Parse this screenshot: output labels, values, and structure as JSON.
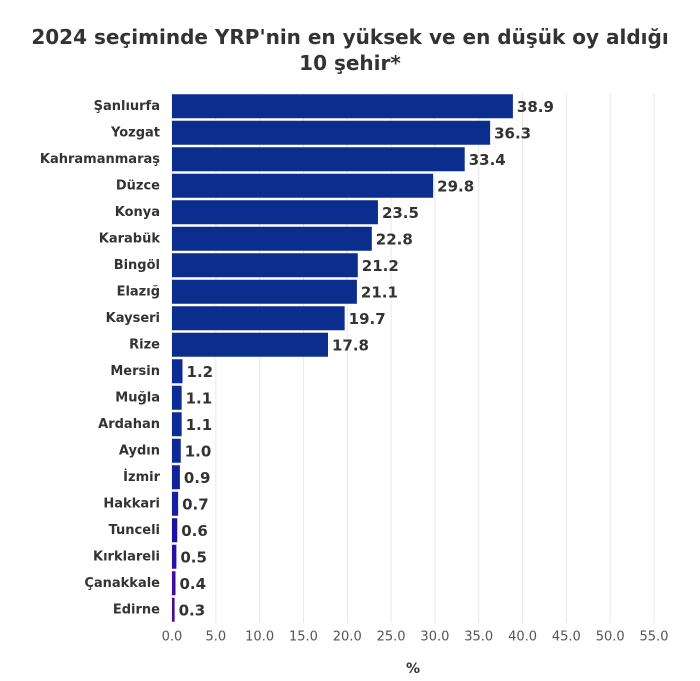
{
  "chart_data": {
    "type": "hbar",
    "title": "2024 seçiminde YRP'nin en yüksek ve en düşük oy aldığı 10 şehir*",
    "x_label": "%",
    "categories": [
      "Şanlıurfa",
      "Yozgat",
      "Kahramanmaraş",
      "Düzce",
      "Konya",
      "Karabük",
      "Bingöl",
      "Elazığ",
      "Kayseri",
      "Rize",
      "Mersin",
      "Muğla",
      "Ardahan",
      "Aydın",
      "İzmir",
      "Hakkari",
      "Tunceli",
      "Kırklareli",
      "Çanakkale",
      "Edirne"
    ],
    "values": [
      38.9,
      36.3,
      33.4,
      29.8,
      23.5,
      22.8,
      21.2,
      21.1,
      19.7,
      17.8,
      1.2,
      1.1,
      1.1,
      1.0,
      0.9,
      0.7,
      0.6,
      0.5,
      0.4,
      0.3
    ],
    "value_labels": [
      "38.9",
      "36.3",
      "33.4",
      "29.8",
      "23.5",
      "22.8",
      "21.2",
      "21.1",
      "19.7",
      "17.8",
      "1.2",
      "1.1",
      "1.1",
      "1.0",
      "0.9",
      "0.7",
      "0.6",
      "0.5",
      "0.4",
      "0.3"
    ],
    "colors": [
      "#0b2d8e",
      "#0b2d8e",
      "#0b2d8e",
      "#0b2d8e",
      "#0b2d8e",
      "#0b2d8e",
      "#0b2d8e",
      "#0b2d8e",
      "#0b2d8e",
      "#0b2d8e",
      "#0d2b94",
      "#0d2b94",
      "#0d2b94",
      "#0f2898",
      "#11249c",
      "#1420a0",
      "#1a12a8",
      "#2810a6",
      "#3a0e9c",
      "#4c0c90"
    ],
    "xlim": [
      0,
      55
    ],
    "xticks": [
      {
        "value": 0,
        "label": "0.0"
      },
      {
        "value": 5,
        "label": "5.0"
      },
      {
        "value": 10,
        "label": "10.0"
      },
      {
        "value": 15,
        "label": "15.0"
      },
      {
        "value": 20,
        "label": "20.0"
      },
      {
        "value": 25,
        "label": "25.0"
      },
      {
        "value": 30,
        "label": "30.0"
      },
      {
        "value": 35,
        "label": "35.0"
      },
      {
        "value": 40,
        "label": "40.0"
      },
      {
        "value": 45,
        "label": "45.0"
      },
      {
        "value": 50,
        "label": "50.0"
      },
      {
        "value": 55,
        "label": "55.0"
      }
    ],
    "grid": true
  }
}
